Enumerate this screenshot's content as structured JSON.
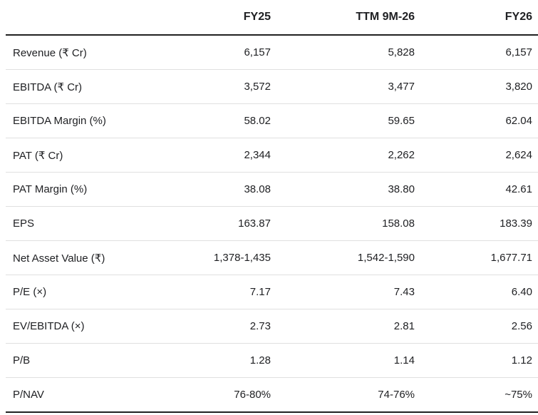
{
  "colors": {
    "background": "#ffffff",
    "text": "#202124",
    "header_rule": "#212121",
    "row_divider": "#e0e0e0"
  },
  "chart_data": {
    "type": "table",
    "columns": [
      "",
      "FY25",
      "TTM 9M-26",
      "FY26"
    ],
    "rows": [
      {
        "label": "Revenue (₹ Cr)",
        "values": [
          "6,157",
          "5,828",
          "6,157"
        ]
      },
      {
        "label": "EBITDA (₹ Cr)",
        "values": [
          "3,572",
          "3,477",
          "3,820"
        ]
      },
      {
        "label": "EBITDA Margin (%)",
        "values": [
          "58.02",
          "59.65",
          "62.04"
        ]
      },
      {
        "label": "PAT (₹ Cr)",
        "values": [
          "2,344",
          "2,262",
          "2,624"
        ]
      },
      {
        "label": "PAT Margin (%)",
        "values": [
          "38.08",
          "38.80",
          "42.61"
        ]
      },
      {
        "label": "EPS",
        "values": [
          "163.87",
          "158.08",
          "183.39"
        ]
      },
      {
        "label": "Net Asset Value (₹)",
        "values": [
          "1,378-1,435",
          "1,542-1,590",
          "1,677.71"
        ]
      },
      {
        "label": "P/E (×)",
        "values": [
          "7.17",
          "7.43",
          "6.40"
        ]
      },
      {
        "label": "EV/EBITDA (×)",
        "values": [
          "2.73",
          "2.81",
          "2.56"
        ]
      },
      {
        "label": "P/B",
        "values": [
          "1.28",
          "1.14",
          "1.12"
        ]
      },
      {
        "label": "P/NAV",
        "values": [
          "76-80%",
          "74-76%",
          "~75%"
        ]
      }
    ]
  }
}
